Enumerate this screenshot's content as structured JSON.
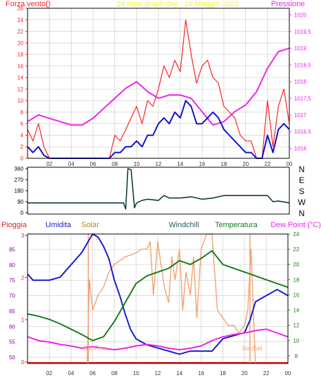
{
  "colors": {
    "plot_bg": "#ffffff",
    "frame": "#000000",
    "grid": "#c8c8c8",
    "wind": "#ff2020",
    "wind_axis": "#ff2020",
    "wind_avg": "#1010cc",
    "pressure": "#ee22ee",
    "title": "#ffee33",
    "direction": "#0f3a3a",
    "humidity": "#1a1acc",
    "solar": "#f4a070",
    "windchill": "#1f6060",
    "temperature": "#1a7a1a",
    "dewpoint": "#ee22ee",
    "rain": "#ee1d1d",
    "sun_marker": "#f4a070",
    "purple_axis": "#8800aa",
    "green_axis": "#1a7a1a"
  },
  "x_ticks": [
    "02",
    "04",
    "06",
    "08",
    "10",
    "12",
    "14",
    "16",
    "18",
    "20",
    "22",
    "00"
  ],
  "chart_data": [
    {
      "type": "line",
      "title": "24 hour graph day : 18 Maggio 2023",
      "left_label": "Forza vento()",
      "right_label": "Pressione",
      "x_range": [
        0,
        24
      ],
      "y_left_range": [
        0,
        26
      ],
      "y_right_range": [
        1015.7,
        1020.2
      ],
      "y_left_ticks": [
        "0",
        "2",
        "4",
        "6",
        "8",
        "10",
        "12",
        "14",
        "16",
        "18",
        "20",
        "22",
        "24",
        "26"
      ],
      "y_right_ticks": [
        "1016",
        "1016,5",
        "1017",
        "1017,5",
        "1018",
        "1018,5",
        "1019",
        "1019,5",
        "1020"
      ],
      "series": [
        {
          "key": "pressure",
          "axis": "right",
          "x": [
            0,
            1,
            2,
            3,
            4,
            5,
            6,
            7,
            8,
            9,
            10,
            11,
            12,
            13,
            14,
            15,
            16,
            17,
            18,
            19,
            20,
            21,
            22,
            23,
            24
          ],
          "y": [
            1016.8,
            1017.0,
            1016.9,
            1016.8,
            1016.7,
            1016.7,
            1016.9,
            1017.2,
            1017.5,
            1017.8,
            1018.0,
            1017.7,
            1017.5,
            1017.6,
            1017.6,
            1017.5,
            1017.1,
            1016.7,
            1016.8,
            1017.1,
            1017.3,
            1017.7,
            1018.4,
            1018.9,
            1019.0
          ]
        },
        {
          "key": "wind_gust",
          "axis": "left",
          "x": [
            0,
            0.5,
            1,
            1.5,
            2,
            2.5,
            3,
            3.5,
            4,
            4.5,
            5,
            5.5,
            6,
            6.5,
            7,
            7.5,
            8,
            8.5,
            9,
            9.5,
            10,
            10.5,
            11,
            11.5,
            12,
            12.5,
            13,
            13.5,
            14,
            14.5,
            15,
            15.5,
            16,
            16.5,
            17,
            17.5,
            18,
            18.5,
            19,
            19.5,
            20,
            20.5,
            21,
            21.5,
            22,
            22.5,
            23,
            23.5,
            24
          ],
          "y": [
            5,
            3,
            6,
            2,
            0,
            0,
            0,
            0,
            0,
            0,
            0,
            0,
            0,
            0,
            0,
            0,
            4,
            3,
            5,
            7,
            9,
            6,
            10,
            9,
            12,
            16,
            14,
            17,
            15,
            24,
            18,
            13,
            16,
            17,
            14,
            13,
            9,
            8,
            7,
            4,
            3,
            3,
            0,
            0,
            10,
            2,
            9,
            12,
            6
          ]
        },
        {
          "key": "wind_avg",
          "axis": "left",
          "x": [
            0,
            0.5,
            1,
            1.5,
            2,
            2.5,
            3,
            3.5,
            4,
            4.5,
            5,
            5.5,
            6,
            6.5,
            7,
            7.5,
            8,
            8.5,
            9,
            9.5,
            10,
            10.5,
            11,
            11.5,
            12,
            12.5,
            13,
            13.5,
            14,
            14.5,
            15,
            15.5,
            16,
            16.5,
            17,
            17.5,
            18,
            18.5,
            19,
            19.5,
            20,
            20.5,
            21,
            21.5,
            22,
            22.5,
            23,
            23.5,
            24
          ],
          "y": [
            2,
            1,
            2,
            0.5,
            0,
            0,
            0,
            0,
            0,
            0,
            0,
            0,
            0,
            0,
            0,
            0,
            1,
            1,
            2,
            2,
            3,
            2,
            4,
            4,
            6,
            7,
            6,
            8,
            7,
            10,
            9,
            6,
            6,
            7,
            8,
            7,
            5,
            4,
            3,
            2,
            1,
            1,
            0,
            0,
            4,
            1,
            5,
            6,
            5
          ]
        }
      ]
    },
    {
      "type": "line",
      "title": "",
      "y_left_range": [
        0,
        360
      ],
      "y_left_ticks": [
        "0",
        "90",
        "180",
        "270",
        "360"
      ],
      "direction_labels": [
        "N",
        "W",
        "S",
        "E",
        "N"
      ],
      "series": [
        {
          "key": "direction",
          "x": [
            0,
            1,
            2,
            3,
            4,
            5,
            6,
            7,
            8,
            8.8,
            9,
            9.2,
            9.5,
            9.8,
            10,
            10.5,
            11,
            12,
            12.5,
            13,
            14,
            15,
            16,
            17,
            18,
            19,
            20,
            21,
            22,
            22.5,
            23,
            24
          ],
          "y": [
            80,
            80,
            80,
            80,
            80,
            80,
            80,
            80,
            80,
            80,
            30,
            360,
            350,
            40,
            80,
            100,
            110,
            100,
            140,
            120,
            120,
            130,
            110,
            120,
            140,
            140,
            140,
            140,
            140,
            90,
            95,
            80
          ]
        }
      ]
    },
    {
      "type": "line",
      "title": "",
      "legend": [
        "Pioggia",
        "Umidita",
        "Solar",
        "Windchill",
        "Temperatura",
        "Dew Point (°C)"
      ],
      "y_left_range": [
        48,
        90
      ],
      "y_left_ticks": [
        "50",
        "55",
        "60",
        "65",
        "70",
        "75",
        "80",
        "85"
      ],
      "y_rain_range": [
        0,
        3
      ],
      "y_rain_ticks": [
        "0",
        "1",
        "2",
        "3"
      ],
      "y_right_range": [
        7,
        24
      ],
      "y_right_ticks": [
        "8",
        "10",
        "12",
        "14",
        "16",
        "18",
        "20",
        "22",
        "24"
      ],
      "sunrise_label": "SunRise",
      "sunset_label": "SunSet",
      "sunrise_x": 5.6,
      "sunset_x": 20.5,
      "series": [
        {
          "key": "humidity",
          "axis": "left",
          "x": [
            0,
            0.5,
            1,
            2,
            3,
            4,
            5,
            5.5,
            6,
            6.5,
            7,
            7.5,
            8,
            8.5,
            9,
            9.5,
            10,
            11,
            12,
            13,
            14,
            15,
            16,
            17,
            18,
            19,
            20,
            20.5,
            21,
            22,
            23,
            24
          ],
          "y": [
            77,
            75,
            75,
            75,
            76,
            80,
            84,
            87,
            90,
            89,
            86,
            82,
            75,
            70,
            64,
            59,
            56,
            54,
            53,
            52,
            51,
            52,
            52,
            52,
            56,
            57,
            58,
            62,
            68,
            70,
            72,
            70
          ]
        },
        {
          "key": "temperature",
          "axis": "right",
          "x": [
            0,
            1,
            2,
            3,
            4,
            5,
            6,
            7,
            8,
            9,
            10,
            11,
            12,
            13,
            14,
            15,
            16,
            17,
            18,
            19,
            20,
            21,
            22,
            23,
            24
          ],
          "y": [
            13.5,
            13.2,
            12.8,
            12.2,
            11.5,
            10.8,
            10.0,
            10.5,
            12.5,
            15.0,
            17.5,
            18.5,
            19.0,
            19.5,
            20.5,
            20.0,
            20.8,
            21.8,
            20.0,
            19.5,
            19.0,
            18.5,
            18.0,
            17.5,
            17.0
          ]
        },
        {
          "key": "dewpoint",
          "axis": "right",
          "x": [
            0,
            1,
            2,
            3,
            4,
            5,
            6,
            7,
            8,
            9,
            10,
            11,
            12,
            13,
            14,
            15,
            16,
            17,
            18,
            19,
            20,
            21,
            22,
            23,
            24
          ],
          "y": [
            10.5,
            10.0,
            9.8,
            9.5,
            9.3,
            9.0,
            9.2,
            9.0,
            8.8,
            9.0,
            9.3,
            9.5,
            9.3,
            9.0,
            8.8,
            9.0,
            9.3,
            10.0,
            10.5,
            10.8,
            11.0,
            11.3,
            11.5,
            11.0,
            10.5
          ]
        },
        {
          "key": "solar",
          "axis": "right",
          "x": [
            0,
            5.5,
            5.7,
            6,
            6.5,
            7,
            7.5,
            8,
            9,
            10,
            10.5,
            11,
            11.3,
            11.6,
            12,
            12.3,
            12.6,
            13,
            13.3,
            13.6,
            14,
            14.3,
            14.6,
            15,
            15.3,
            15.6,
            16,
            16.5,
            17,
            17.5,
            18,
            18.5,
            19,
            19.5,
            20,
            20.3,
            20.6,
            21,
            24
          ],
          "y": [
            7,
            7,
            18,
            14,
            16,
            17,
            19,
            20,
            21,
            21.5,
            22,
            22,
            23,
            16,
            23,
            20,
            17,
            15,
            21,
            18,
            22,
            14,
            19,
            16,
            21,
            13,
            22,
            24,
            24,
            14,
            13,
            12,
            12,
            11,
            12,
            14,
            22,
            7,
            7
          ]
        }
      ]
    }
  ]
}
